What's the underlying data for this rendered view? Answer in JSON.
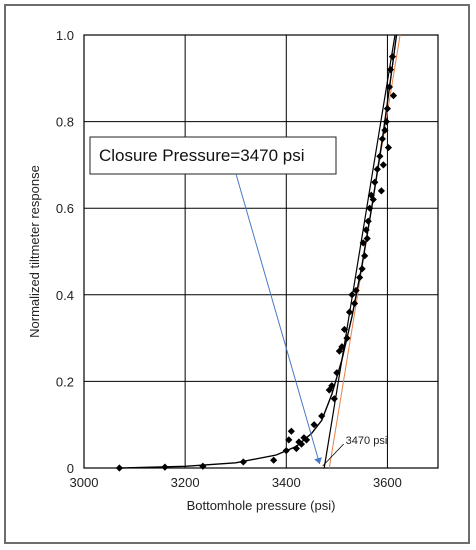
{
  "chart_data": {
    "type": "scatter",
    "xlabel": "Bottomhole pressure (psi)",
    "ylabel": "Normalized tiltmeter response",
    "xlim": [
      3000,
      3700
    ],
    "ylim": [
      0,
      1.0
    ],
    "x_ticks": [
      3000,
      3200,
      3400,
      3600
    ],
    "y_ticks": [
      0,
      0.2,
      0.4,
      0.6,
      0.8,
      1.0
    ],
    "x_tick_labels": [
      "3000",
      "3200",
      "3400",
      "3600"
    ],
    "y_tick_labels": [
      "0",
      "0.2",
      "0.4",
      "0.6",
      "0.8",
      "1.0"
    ],
    "grid": true,
    "series": [
      {
        "marker": "diamond",
        "color": "#000000",
        "points": [
          [
            3070,
            0.0
          ],
          [
            3160,
            0.002
          ],
          [
            3235,
            0.004
          ],
          [
            3315,
            0.014
          ],
          [
            3375,
            0.018
          ],
          [
            3400,
            0.04
          ],
          [
            3405,
            0.065
          ],
          [
            3410,
            0.085
          ],
          [
            3420,
            0.045
          ],
          [
            3425,
            0.06
          ],
          [
            3430,
            0.055
          ],
          [
            3435,
            0.07
          ],
          [
            3440,
            0.065
          ],
          [
            3455,
            0.1
          ],
          [
            3470,
            0.12
          ],
          [
            3485,
            0.18
          ],
          [
            3490,
            0.19
          ],
          [
            3495,
            0.16
          ],
          [
            3500,
            0.22
          ],
          [
            3505,
            0.27
          ],
          [
            3510,
            0.28
          ],
          [
            3515,
            0.32
          ],
          [
            3520,
            0.3
          ],
          [
            3525,
            0.36
          ],
          [
            3530,
            0.4
          ],
          [
            3535,
            0.38
          ],
          [
            3538,
            0.41
          ],
          [
            3545,
            0.44
          ],
          [
            3550,
            0.46
          ],
          [
            3552,
            0.52
          ],
          [
            3555,
            0.49
          ],
          [
            3558,
            0.55
          ],
          [
            3560,
            0.53
          ],
          [
            3562,
            0.57
          ],
          [
            3565,
            0.6
          ],
          [
            3568,
            0.63
          ],
          [
            3572,
            0.62
          ],
          [
            3575,
            0.66
          ],
          [
            3580,
            0.69
          ],
          [
            3585,
            0.72
          ],
          [
            3588,
            0.64
          ],
          [
            3590,
            0.76
          ],
          [
            3592,
            0.7
          ],
          [
            3595,
            0.78
          ],
          [
            3598,
            0.8
          ],
          [
            3600,
            0.83
          ],
          [
            3602,
            0.74
          ],
          [
            3604,
            0.88
          ],
          [
            3606,
            0.92
          ],
          [
            3610,
            0.95
          ],
          [
            3612,
            0.86
          ]
        ]
      }
    ],
    "fit_curve": [
      [
        3070,
        0.0
      ],
      [
        3200,
        0.004
      ],
      [
        3300,
        0.012
      ],
      [
        3380,
        0.03
      ],
      [
        3420,
        0.05
      ],
      [
        3450,
        0.08
      ],
      [
        3470,
        0.11
      ],
      [
        3490,
        0.17
      ],
      [
        3510,
        0.25
      ],
      [
        3530,
        0.35
      ],
      [
        3550,
        0.47
      ],
      [
        3570,
        0.61
      ],
      [
        3590,
        0.76
      ],
      [
        3610,
        0.93
      ],
      [
        3618,
        1.0
      ]
    ],
    "tangent_line": [
      [
        3475,
        0.0
      ],
      [
        3615,
        1.0
      ]
    ],
    "orange_line": [
      [
        3485,
        0.0
      ],
      [
        3625,
        1.0
      ]
    ],
    "closure_marker": [
      3470,
      0.0
    ],
    "annotations": {
      "callout": "Closure Pressure=3470 psi",
      "small_label": "3470 psi"
    }
  }
}
